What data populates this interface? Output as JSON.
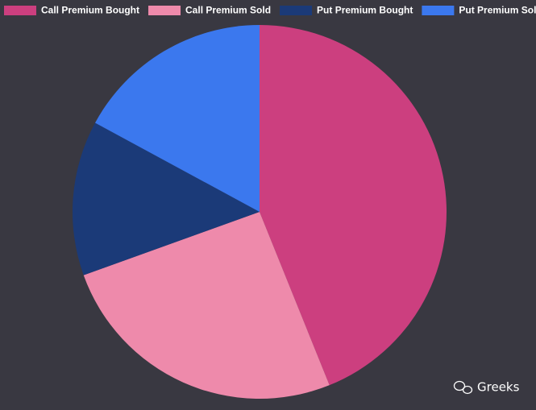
{
  "chart_data": {
    "type": "pie",
    "categories": [
      "Call Premium Bought",
      "Call Premium Sold",
      "Put Premium Bought",
      "Put Premium Sold"
    ],
    "values": [
      43.9,
      25.6,
      13.4,
      17.1
    ],
    "colors": [
      "#cc3f7f",
      "#ee8aab",
      "#1b3a78",
      "#3b78ee"
    ],
    "legend": "top"
  },
  "watermark": "Greeks"
}
